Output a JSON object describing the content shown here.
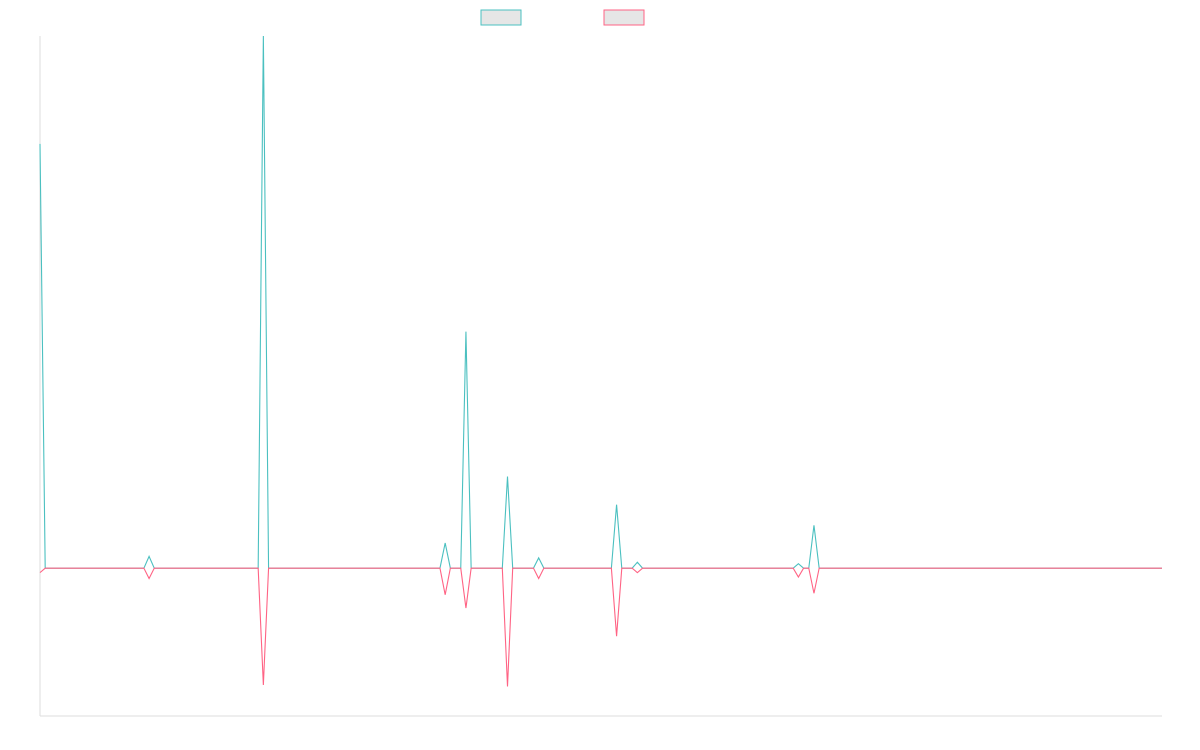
{
  "chart_data": {
    "type": "line",
    "title": "",
    "xlabel": "",
    "ylabel": "",
    "grid": false,
    "legend_position": "top-center",
    "x": [
      0,
      1,
      2,
      3,
      4,
      5,
      6,
      7,
      8,
      9,
      10,
      11,
      12,
      13,
      14,
      15,
      16,
      17,
      18,
      19,
      20,
      21,
      22,
      23,
      24,
      25,
      26,
      27,
      28,
      29,
      30,
      31,
      32,
      33,
      34,
      35,
      36,
      37,
      38,
      39,
      40,
      41,
      42,
      43,
      44,
      45,
      46,
      47,
      48,
      49,
      50,
      51,
      52,
      53,
      54,
      55,
      56,
      57,
      58,
      59,
      60,
      61,
      62,
      63,
      64,
      65,
      66,
      67,
      68,
      69,
      70,
      71,
      72,
      73,
      74,
      75,
      76,
      77,
      78,
      79,
      80,
      81,
      82,
      83,
      84,
      85,
      86,
      87,
      88,
      89,
      90,
      91,
      92,
      93,
      94,
      95,
      96,
      97,
      98,
      99,
      100,
      101,
      102,
      103,
      104,
      105,
      106,
      107,
      108,
      109,
      110,
      111,
      112,
      113,
      114,
      115,
      116,
      117,
      118,
      119,
      120,
      121,
      122,
      123,
      124,
      125,
      126,
      127,
      128,
      129,
      130,
      131,
      132,
      133,
      134,
      135,
      136,
      137,
      138,
      139,
      140,
      141,
      142,
      143,
      144,
      145,
      146,
      147,
      148,
      149,
      150,
      151,
      152,
      153,
      154,
      155,
      156,
      157,
      158,
      159,
      160,
      161,
      162,
      163,
      164,
      165,
      166,
      167,
      168,
      169,
      170,
      171,
      172,
      173,
      174,
      175,
      176,
      177,
      178,
      179,
      180,
      181,
      182,
      183,
      184,
      185,
      186,
      187,
      188,
      189,
      190,
      191,
      192,
      193,
      194,
      195,
      196,
      197,
      198,
      199,
      200,
      201,
      202,
      203,
      204,
      205,
      206,
      207,
      208,
      209,
      210,
      211,
      212,
      213,
      214,
      215,
      216
    ],
    "xlim": [
      0,
      216
    ],
    "ylim": [
      -100,
      360
    ],
    "series": [
      {
        "color": "#4bc0c0",
        "peaks": [
          {
            "x": 0,
            "y": 287
          },
          {
            "x": 21,
            "y": 8
          },
          {
            "x": 43,
            "y": 360
          },
          {
            "x": 78,
            "y": 17
          },
          {
            "x": 82,
            "y": 160
          },
          {
            "x": 90,
            "y": 62
          },
          {
            "x": 96,
            "y": 7
          },
          {
            "x": 111,
            "y": 43
          },
          {
            "x": 115,
            "y": 4
          },
          {
            "x": 146,
            "y": 3
          },
          {
            "x": 149,
            "y": 29
          }
        ]
      },
      {
        "color": "#ff6384",
        "peaks": [
          {
            "x": 0,
            "y": -3
          },
          {
            "x": 21,
            "y": -7
          },
          {
            "x": 43,
            "y": -79
          },
          {
            "x": 78,
            "y": -18
          },
          {
            "x": 82,
            "y": -27
          },
          {
            "x": 90,
            "y": -80
          },
          {
            "x": 96,
            "y": -7
          },
          {
            "x": 111,
            "y": -46
          },
          {
            "x": 115,
            "y": -3
          },
          {
            "x": 146,
            "y": -6
          },
          {
            "x": 149,
            "y": -17
          }
        ]
      }
    ]
  },
  "colors": {
    "teal": "#4bc0c0",
    "pink": "#ff6384",
    "swatch_fill": "#e6e6e6",
    "axis": "#dddddd"
  }
}
